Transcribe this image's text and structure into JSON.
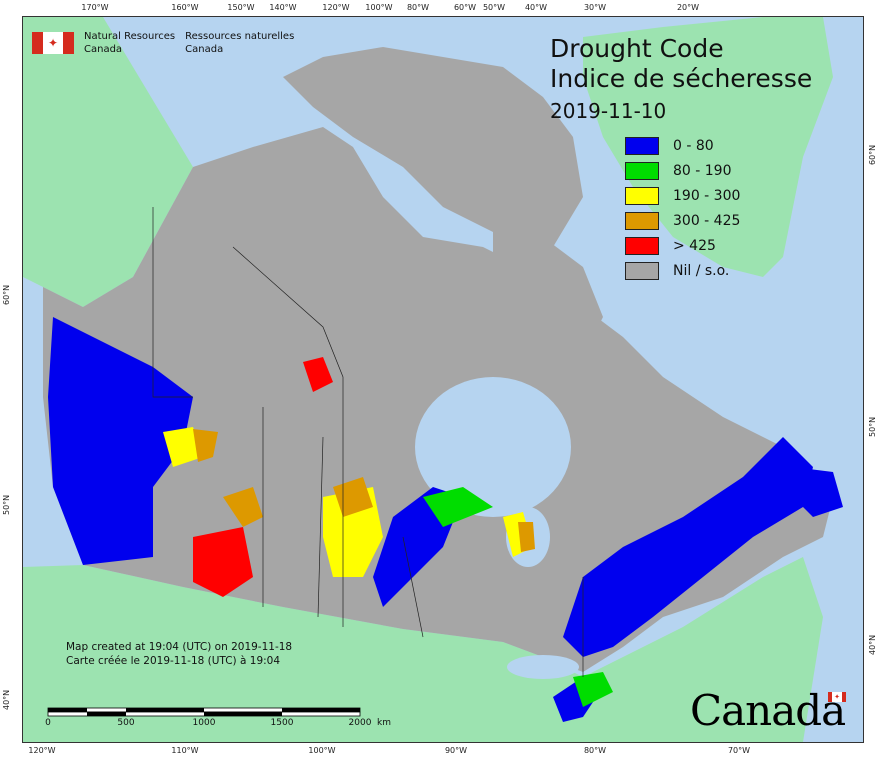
{
  "title": {
    "en": "Drought Code",
    "fr": "Indice de sécheresse",
    "date": "2019-11-10"
  },
  "organization": {
    "en_line1": "Natural Resources",
    "en_line2": "Canada",
    "fr_line1": "Ressources naturelles",
    "fr_line2": "Canada",
    "flag_icon": "canada-flag-icon"
  },
  "legend": [
    {
      "label": "0 - 80",
      "color": "#0000ee"
    },
    {
      "label": "80 - 190",
      "color": "#00dd00"
    },
    {
      "label": "190 - 300",
      "color": "#ffff00"
    },
    {
      "label": "300 - 425",
      "color": "#dd9900"
    },
    {
      "label": "> 425",
      "color": "#ff0000"
    },
    {
      "label": "Nil / s.o.",
      "color": "#a6a6a6"
    }
  ],
  "credits": {
    "en": "Map created at 19:04 (UTC) on 2019-11-18",
    "fr": "Carte créée le 2019-11-18 (UTC) à 19:04"
  },
  "scale": {
    "labels": [
      "0",
      "500",
      "1000",
      "1500",
      "2000"
    ],
    "unit": "km"
  },
  "graticule": {
    "top_longitudes": [
      "170°W",
      "160°W",
      "150°W",
      "140°W",
      "120°W",
      "100°W",
      "80°W",
      "60°W",
      "50°W",
      "40°W",
      "30°W",
      "20°W"
    ],
    "bottom_longitudes": [
      "120°W",
      "110°W",
      "100°W",
      "90°W",
      "80°W",
      "70°W"
    ],
    "left_latitudes": [
      "60°N",
      "50°N",
      "40°N"
    ],
    "right_latitudes": [
      "60°N",
      "50°N",
      "40°N"
    ]
  },
  "wordmark": "Canada",
  "colors": {
    "ocean": "#b6d4f0",
    "foreign_land": "#9ce3b0",
    "no_data": "#a6a6a6"
  }
}
